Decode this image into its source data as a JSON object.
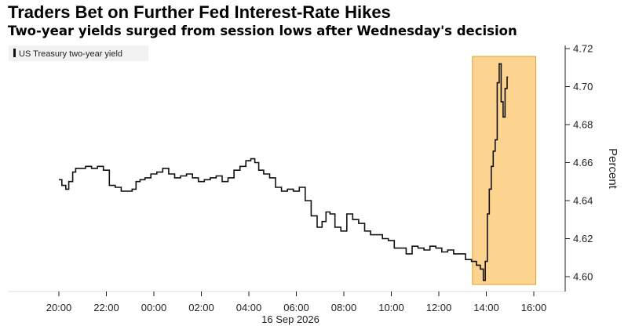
{
  "header": {
    "title": "Traders Bet on Further Fed Interest-Rate Hikes",
    "subtitle": "Two-year yields surged from session lows after Wednesday's decision"
  },
  "chart_data": {
    "type": "line",
    "title": "Traders Bet on Further Fed Interest-Rate Hikes",
    "subtitle": "Two-year yields surged from session lows after Wednesday's decision",
    "xlabel": "",
    "ylabel": "Percent",
    "x_date_label": "16 Sep 2026",
    "x_ticks": [
      "20:00",
      "22:00",
      "00:00",
      "02:00",
      "04:00",
      "06:00",
      "08:00",
      "10:00",
      "12:00",
      "14:00",
      "16:00"
    ],
    "y_ticks": [
      "4.60",
      "4.62",
      "4.64",
      "4.66",
      "4.68",
      "4.70",
      "4.72"
    ],
    "ylim": [
      4.595,
      4.72
    ],
    "xlim": [
      "19:20",
      "16:40"
    ],
    "legend": {
      "position": "top-left",
      "entries": [
        "US Treasury two-year yield"
      ]
    },
    "grid": false,
    "highlight": {
      "from": "13:25",
      "to": "16:05",
      "color": "#fcd38f"
    },
    "colors": {
      "line": "#111111",
      "highlight_fill": "#fcd38f",
      "highlight_stroke": "#e0a030"
    },
    "series": [
      {
        "name": "US Treasury two-year yield",
        "x": [
          "20:00",
          "20:15",
          "20:20",
          "20:30",
          "20:40",
          "20:45",
          "21:00",
          "21:15",
          "21:30",
          "21:45",
          "22:00",
          "22:15",
          "22:30",
          "22:45",
          "23:00",
          "23:10",
          "23:20",
          "23:30",
          "23:45",
          "00:00",
          "00:15",
          "00:30",
          "00:45",
          "01:00",
          "01:15",
          "01:30",
          "01:45",
          "02:00",
          "02:15",
          "02:30",
          "02:45",
          "03:00",
          "03:15",
          "03:30",
          "03:45",
          "04:00",
          "04:10",
          "04:20",
          "04:30",
          "04:45",
          "05:00",
          "05:15",
          "05:30",
          "05:45",
          "06:00",
          "06:15",
          "06:30",
          "06:45",
          "07:00",
          "07:10",
          "07:20",
          "07:30",
          "07:45",
          "08:00",
          "08:15",
          "08:30",
          "08:45",
          "09:00",
          "09:15",
          "09:30",
          "09:45",
          "10:00",
          "10:15",
          "10:30",
          "10:45",
          "11:00",
          "11:15",
          "11:30",
          "11:45",
          "12:00",
          "12:15",
          "12:30",
          "12:45",
          "13:00",
          "13:15",
          "13:30",
          "13:40",
          "13:50",
          "13:55",
          "14:00",
          "14:05",
          "14:10",
          "14:15",
          "14:20",
          "14:25",
          "14:30",
          "14:35",
          "14:40",
          "14:45",
          "14:50",
          "14:55"
        ],
        "values": [
          4.651,
          4.648,
          4.646,
          4.65,
          4.655,
          4.657,
          4.657,
          4.658,
          4.657,
          4.658,
          4.656,
          4.648,
          4.647,
          4.645,
          4.645,
          4.646,
          4.65,
          4.651,
          4.652,
          4.654,
          4.655,
          4.657,
          4.654,
          4.652,
          4.653,
          4.654,
          4.652,
          4.65,
          4.651,
          4.652,
          4.653,
          4.65,
          4.652,
          4.656,
          4.658,
          4.661,
          4.662,
          4.66,
          4.656,
          4.654,
          4.652,
          4.647,
          4.645,
          4.646,
          4.645,
          4.647,
          4.64,
          4.632,
          4.626,
          4.629,
          4.634,
          4.633,
          4.626,
          4.624,
          4.633,
          4.63,
          4.628,
          4.624,
          4.622,
          4.622,
          4.62,
          4.619,
          4.615,
          4.615,
          4.612,
          4.616,
          4.615,
          4.614,
          4.616,
          4.615,
          4.613,
          4.614,
          4.612,
          4.612,
          4.609,
          4.608,
          4.606,
          4.604,
          4.598,
          4.608,
          4.633,
          4.646,
          4.658,
          4.666,
          4.672,
          4.702,
          4.712,
          4.692,
          4.684,
          4.699,
          4.705
        ]
      }
    ]
  }
}
